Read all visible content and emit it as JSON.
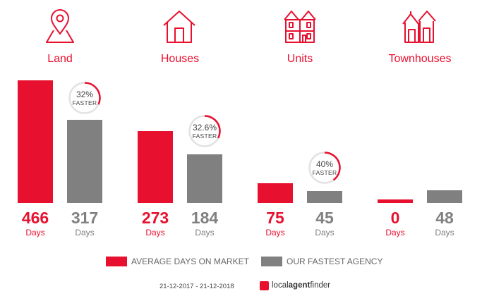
{
  "chart_data": {
    "type": "bar",
    "categories": [
      "Land",
      "Houses",
      "Units",
      "Townhouses"
    ],
    "series": [
      {
        "name": "AVERAGE DAYS ON MARKET",
        "values": [
          466,
          273,
          75,
          0
        ],
        "color": "#e8102f"
      },
      {
        "name": "OUR FASTEST AGENCY",
        "values": [
          317,
          184,
          45,
          48
        ],
        "color": "#808080"
      }
    ],
    "value_labels": [
      [
        "466",
        "317"
      ],
      [
        "273",
        "184"
      ],
      [
        "75",
        "45"
      ],
      [
        "0",
        "48"
      ]
    ],
    "unit_label": "Days",
    "badges": [
      {
        "category": "Land",
        "value": "32%",
        "fraction": 0.32,
        "label": "FASTER"
      },
      {
        "category": "Houses",
        "value": "32.6%",
        "fraction": 0.326,
        "label": "FASTER"
      },
      {
        "category": "Units",
        "value": "40%",
        "fraction": 0.4,
        "label": "FASTER"
      }
    ],
    "ylim": [
      0,
      466
    ],
    "legend": "bottom-center",
    "grid": false
  },
  "icons": [
    "location-pin-map-icon",
    "house-icon",
    "apartment-building-icon",
    "townhouse-icon"
  ],
  "footer": {
    "date_range": "21-12-2017 - 21-12-2018",
    "brand_local": "local",
    "brand_agent": "agent",
    "brand_finder": "finder"
  },
  "colors": {
    "accent": "#e8102f",
    "agency": "#808080",
    "ring_track": "#e2e2e2"
  }
}
